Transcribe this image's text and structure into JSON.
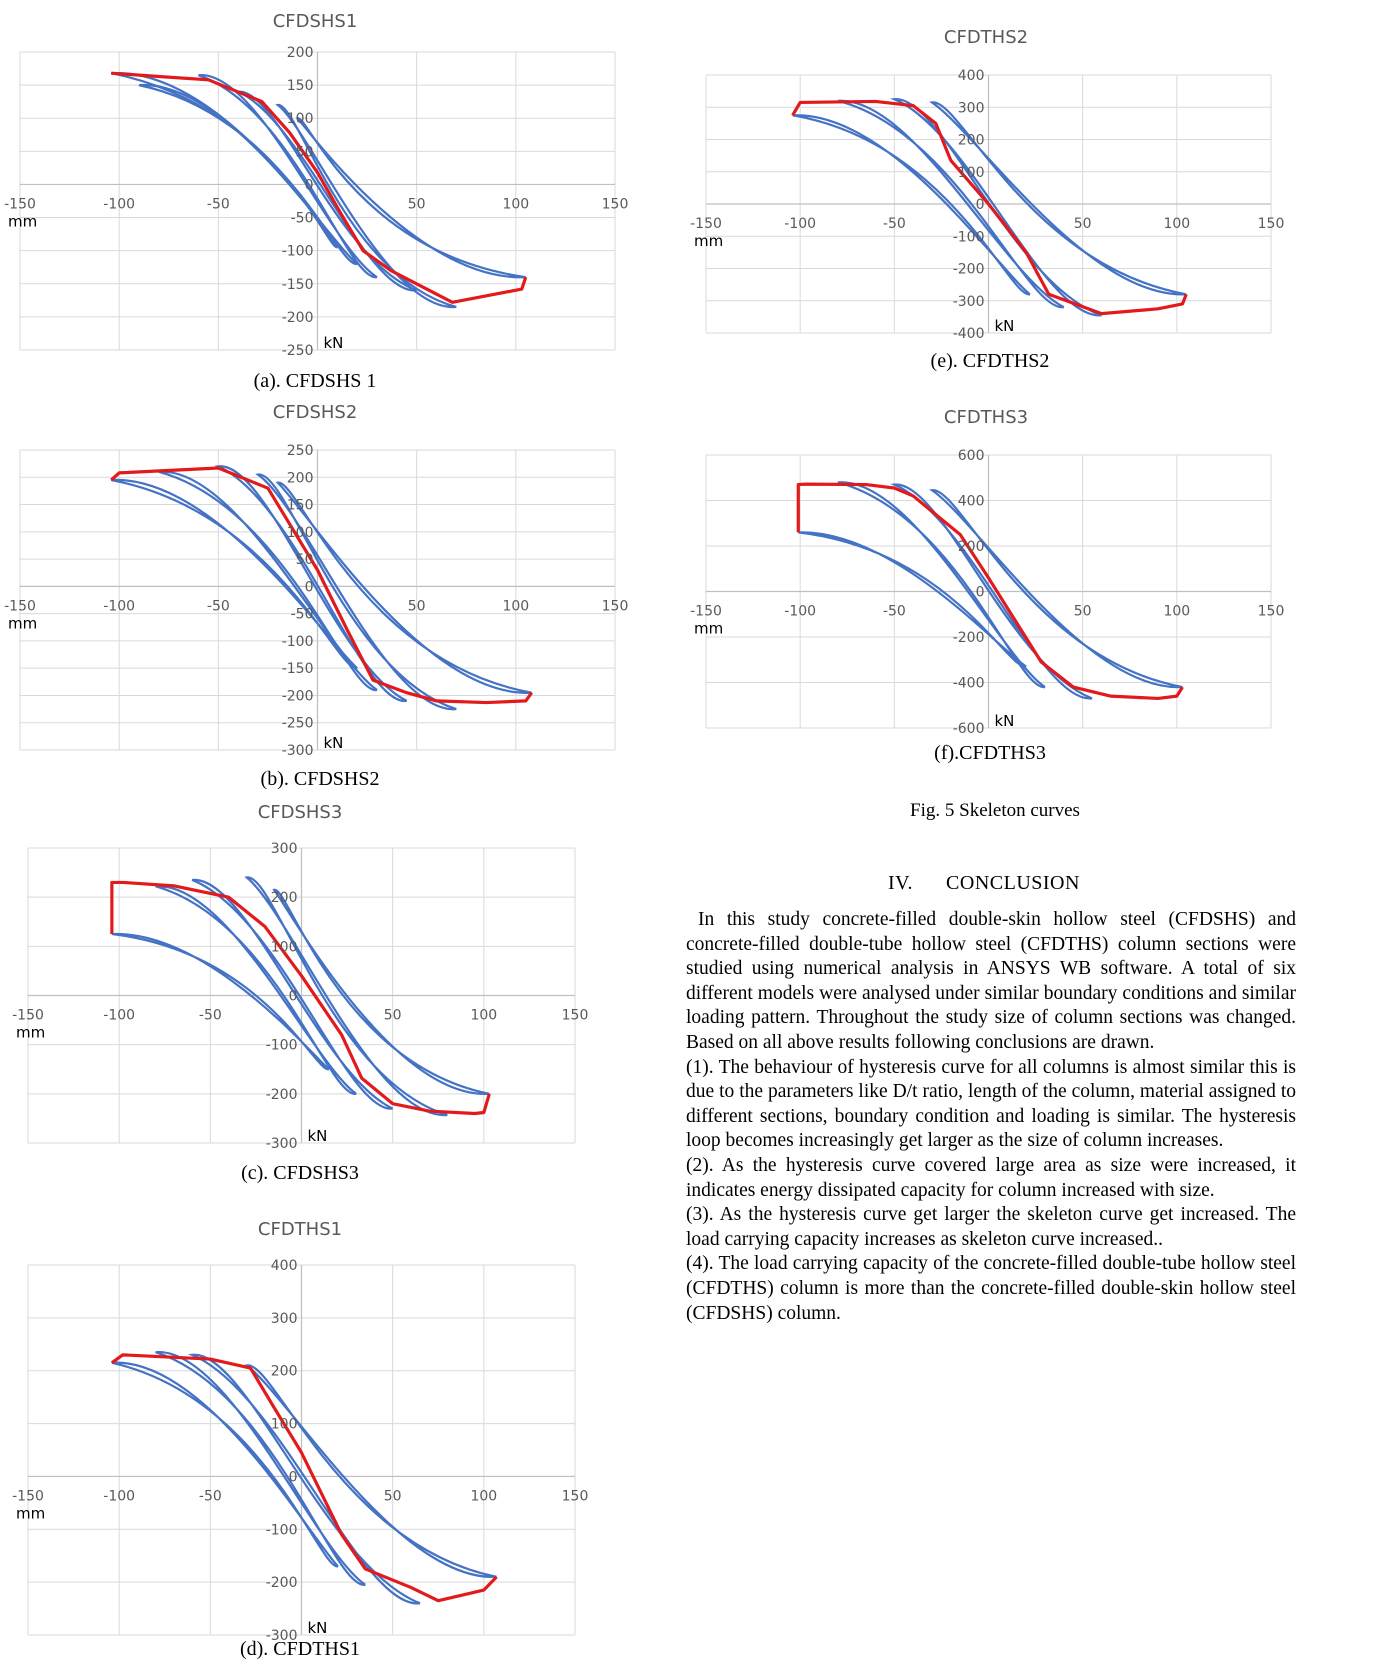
{
  "figure_caption": "Fig. 5 Skeleton curves",
  "section": {
    "number": "IV.",
    "title": "CONCLUSION"
  },
  "paragraphs": [
    "In this study concrete-filled double-skin hollow steel (CFDSHS) and concrete-filled double-tube hollow steel (CFDTHS) column sections were studied using numerical analysis in ANSYS WB software. A total of six different models were analysed under similar boundary conditions and similar loading pattern. Throughout the study size of column sections was changed. Based on all above results following conclusions are drawn.",
    "(1). The behaviour of hysteresis curve for all columns is almost similar this is due to the parameters like D/t ratio, length of the column, material assigned to different sections, boundary condition and loading is similar. The hysteresis loop becomes increasingly get larger as the size of column increases.",
    "(2). As the hysteresis curve covered large area as size were increased, it indicates energy dissipated capacity for column increased with size.",
    "(3). As the hysteresis curve get larger the skeleton curve get increased. The load carrying capacity increases as skeleton curve increased..",
    "(4). The load carrying capacity of the concrete-filled double-tube hollow steel (CFDTHS) column is more than the concrete-filled double-skin hollow steel (CFDSHS) column."
  ],
  "chart_data": [
    {
      "type": "line",
      "id": "a",
      "title": "CFDSHS1",
      "caption": "(a). CFDSHS 1",
      "xlabel": "mm",
      "ylabel": "kN",
      "xlim": [
        -150,
        150
      ],
      "ylim": [
        -250,
        200
      ],
      "xticks": [
        -150,
        -100,
        -50,
        0,
        50,
        100,
        150
      ],
      "yticks": [
        200,
        150,
        100,
        50,
        0,
        -50,
        -100,
        -150,
        -200,
        -250
      ],
      "grid": true,
      "colors": {
        "hysteresis": "#4472c4",
        "skeleton": "#e31a1c"
      },
      "skeleton": {
        "x": [
          -104,
          -80,
          -55,
          -28,
          -14,
          0,
          12,
          23,
          37,
          68,
          103,
          105
        ],
        "y": [
          168,
          163,
          158,
          125,
          78,
          18,
          -45,
          -100,
          -130,
          -178,
          -158,
          -140
        ]
      },
      "hysteresis_peaks": {
        "x": [
          -104,
          -90,
          -60,
          -40,
          -20,
          -10,
          10,
          20,
          30,
          50,
          70,
          105
        ],
        "y": [
          168,
          150,
          165,
          140,
          120,
          100,
          -95,
          -120,
          -140,
          -160,
          -185,
          -140
        ]
      }
    },
    {
      "type": "line",
      "id": "b",
      "title": "CFDSHS2",
      "caption": "(b). CFDSHS2",
      "xlabel": "mm",
      "ylabel": "kN",
      "xlim": [
        -150,
        150
      ],
      "ylim": [
        -300,
        250
      ],
      "xticks": [
        -150,
        -100,
        -50,
        0,
        50,
        100,
        150
      ],
      "yticks": [
        250,
        200,
        150,
        100,
        50,
        0,
        -50,
        -100,
        -150,
        -200,
        -250,
        -300
      ],
      "grid": true,
      "colors": {
        "hysteresis": "#4472c4",
        "skeleton": "#e31a1c"
      },
      "skeleton": {
        "x": [
          -104,
          -100,
          -50,
          -25,
          -15,
          0,
          15,
          28,
          45,
          60,
          85,
          105,
          108
        ],
        "y": [
          195,
          208,
          217,
          180,
          120,
          30,
          -80,
          -172,
          -195,
          -210,
          -213,
          -210,
          -195
        ]
      },
      "hysteresis_peaks": {
        "x": [
          -104,
          -80,
          -50,
          -30,
          -20,
          20,
          30,
          45,
          70,
          108
        ],
        "y": [
          195,
          210,
          220,
          205,
          190,
          -150,
          -190,
          -210,
          -225,
          -195
        ]
      }
    },
    {
      "type": "line",
      "id": "c",
      "title": "CFDSHS3",
      "caption": "(c). CFDSHS3",
      "xlabel": "mm",
      "ylabel": "kN",
      "xlim": [
        -150,
        150
      ],
      "ylim": [
        -300,
        300
      ],
      "xticks": [
        -150,
        -100,
        -50,
        0,
        50,
        100,
        150
      ],
      "yticks": [
        300,
        200,
        100,
        0,
        -100,
        -200,
        -300
      ],
      "grid": true,
      "colors": {
        "hysteresis": "#4472c4",
        "skeleton": "#e31a1c"
      },
      "skeleton": {
        "x": [
          -104,
          -104,
          -98,
          -70,
          -40,
          -20,
          0,
          22,
          33,
          50,
          70,
          95,
          100,
          103
        ],
        "y": [
          125,
          230,
          230,
          223,
          200,
          140,
          40,
          -80,
          -168,
          -220,
          -235,
          -240,
          -238,
          -200
        ]
      },
      "hysteresis_peaks": {
        "x": [
          -104,
          -80,
          -60,
          -30,
          -15,
          15,
          30,
          50,
          80,
          103
        ],
        "y": [
          125,
          222,
          235,
          240,
          215,
          -150,
          -200,
          -230,
          -243,
          -200
        ]
      }
    },
    {
      "type": "line",
      "id": "d",
      "title": "CFDTHS1",
      "caption": "(d). CFDTHS1",
      "xlabel": "mm",
      "ylabel": "kN",
      "xlim": [
        -150,
        150
      ],
      "ylim": [
        -300,
        400
      ],
      "xticks": [
        -150,
        -100,
        -50,
        0,
        50,
        100,
        150
      ],
      "yticks": [
        400,
        300,
        200,
        100,
        0,
        -100,
        -200,
        -300
      ],
      "grid": true,
      "colors": {
        "hysteresis": "#4472c4",
        "skeleton": "#e31a1c"
      },
      "skeleton": {
        "x": [
          -104,
          -98,
          -50,
          -28,
          -15,
          0,
          22,
          35,
          60,
          75,
          100,
          107
        ],
        "y": [
          215,
          230,
          222,
          205,
          130,
          45,
          -110,
          -175,
          -210,
          -235,
          -215,
          -190
        ]
      },
      "hysteresis_peaks": {
        "x": [
          -104,
          -80,
          -60,
          -30,
          0,
          20,
          35,
          65,
          107
        ],
        "y": [
          215,
          235,
          230,
          210,
          265,
          -170,
          -205,
          -240,
          -190
        ]
      }
    },
    {
      "type": "line",
      "id": "e",
      "title": "CFDTHS2",
      "caption": "(e). CFDTHS2",
      "xlabel": "mm",
      "ylabel": "kN",
      "xlim": [
        -150,
        150
      ],
      "ylim": [
        -400,
        400
      ],
      "xticks": [
        -150,
        -100,
        -50,
        0,
        50,
        100,
        150
      ],
      "yticks": [
        400,
        300,
        200,
        100,
        0,
        -100,
        -200,
        -300,
        -400
      ],
      "grid": true,
      "colors": {
        "hysteresis": "#4472c4",
        "skeleton": "#e31a1c"
      },
      "skeleton": {
        "x": [
          -104,
          -100,
          -60,
          -40,
          -28,
          -20,
          0,
          20,
          32,
          60,
          90,
          103,
          105
        ],
        "y": [
          275,
          315,
          318,
          305,
          250,
          135,
          0,
          -150,
          -280,
          -340,
          -325,
          -310,
          -280
        ]
      },
      "hysteresis_peaks": {
        "x": [
          -104,
          -80,
          -50,
          -30,
          0,
          22,
          40,
          60,
          105
        ],
        "y": [
          275,
          320,
          325,
          315,
          310,
          -280,
          -320,
          -345,
          -280
        ]
      }
    },
    {
      "type": "line",
      "id": "f",
      "title": "CFDTHS3",
      "caption": "(f).CFDTHS3",
      "xlabel": "mm",
      "ylabel": "kN",
      "xlim": [
        -150,
        150
      ],
      "ylim": [
        -600,
        600
      ],
      "xticks": [
        -150,
        -100,
        -50,
        0,
        50,
        100,
        150
      ],
      "yticks": [
        600,
        400,
        200,
        0,
        -200,
        -400,
        -600
      ],
      "grid": true,
      "colors": {
        "hysteresis": "#4472c4",
        "skeleton": "#e31a1c"
      },
      "skeleton": {
        "x": [
          -101,
          -101,
          -97,
          -65,
          -50,
          -40,
          -15,
          0,
          28,
          45,
          65,
          90,
          100,
          103
        ],
        "y": [
          260,
          470,
          472,
          470,
          455,
          420,
          250,
          60,
          -310,
          -420,
          -460,
          -470,
          -460,
          -420
        ]
      },
      "hysteresis_peaks": {
        "x": [
          -101,
          -80,
          -50,
          -30,
          -20,
          20,
          30,
          55,
          103
        ],
        "y": [
          260,
          480,
          470,
          445,
          420,
          -330,
          -420,
          -470,
          -420
        ]
      }
    }
  ]
}
